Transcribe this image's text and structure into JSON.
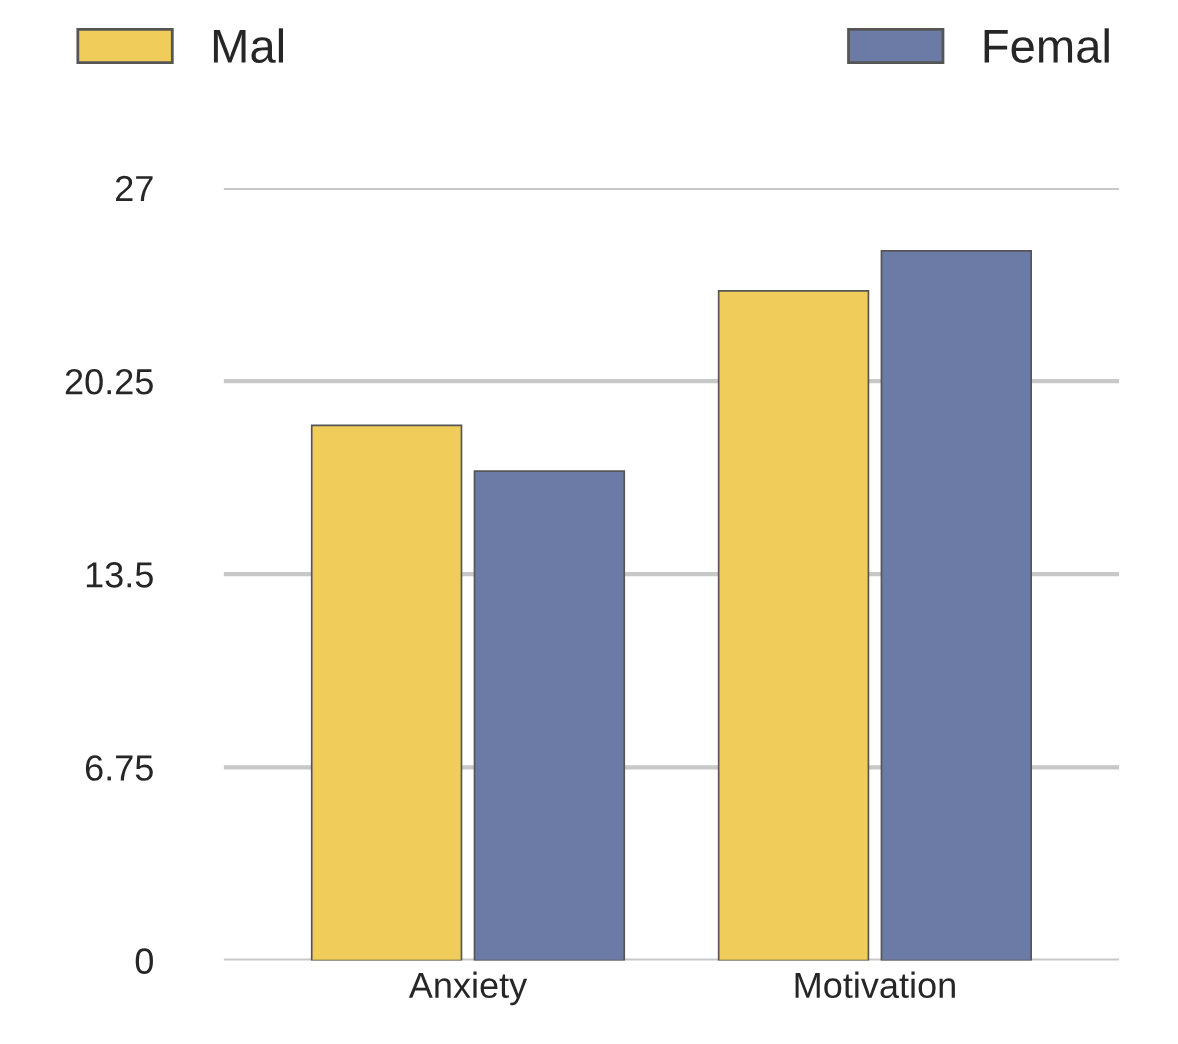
{
  "chart_data": {
    "type": "bar",
    "categories": [
      "Anxiety",
      "Motivation"
    ],
    "series": [
      {
        "name": "Mal",
        "color": "#f0cd5a",
        "values": [
          18.7,
          23.4
        ]
      },
      {
        "name": "Femal",
        "color": "#6c7aa6",
        "values": [
          17.1,
          24.8
        ]
      }
    ],
    "ylim": [
      0,
      27
    ],
    "yticks": [
      0,
      6.75,
      13.5,
      20.25,
      27
    ],
    "grid": "y",
    "legend": "top"
  }
}
